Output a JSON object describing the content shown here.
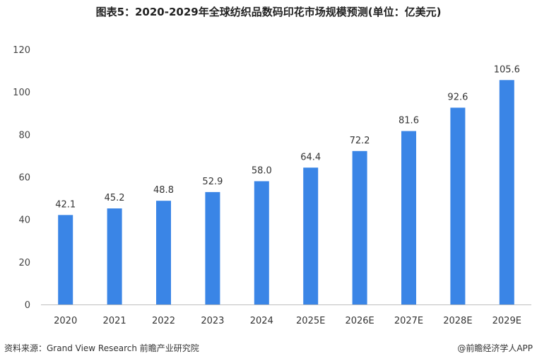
{
  "title": "图表5：2020-2029年全球纺织品数码印花市场规模预测(单位：亿美元)",
  "source": "资料来源：Grand View Research 前瞻产业研究院",
  "credit": "@前瞻经济学人APP",
  "colors": {
    "bar": "#3a85e6",
    "axis": "#bfbfbf"
  },
  "chart_data": {
    "type": "bar",
    "categories": [
      "2020",
      "2021",
      "2022",
      "2023",
      "2024",
      "2025E",
      "2026E",
      "2027E",
      "2028E",
      "2029E"
    ],
    "values": [
      42.1,
      45.2,
      48.8,
      52.9,
      58.0,
      64.4,
      72.2,
      81.6,
      92.6,
      105.6
    ],
    "value_labels": [
      "42.1",
      "45.2",
      "48.8",
      "52.9",
      "58.0",
      "64.4",
      "72.2",
      "81.6",
      "92.6",
      "105.6"
    ],
    "yticks": [
      "0",
      "20",
      "40",
      "60",
      "80",
      "100",
      "120"
    ],
    "ylim": [
      0,
      120
    ],
    "grid": false,
    "legend": "none"
  }
}
